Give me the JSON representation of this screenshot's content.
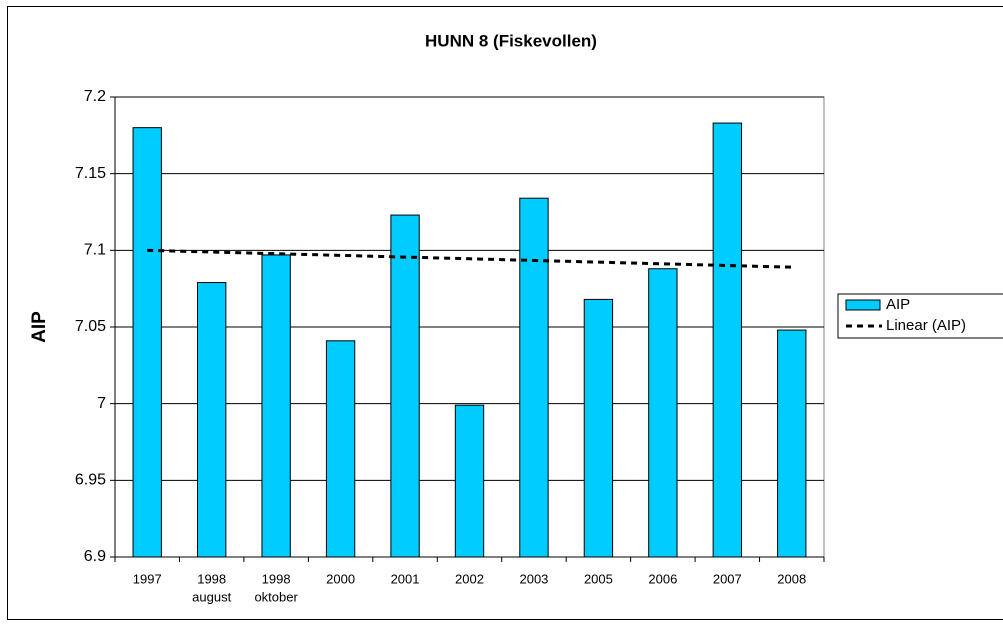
{
  "chart_data": {
    "type": "bar",
    "title": "HUNN 8 (Fiskevollen)",
    "y_label": "AIP",
    "categories": [
      [
        "1997"
      ],
      [
        "1998",
        "august"
      ],
      [
        "1998",
        "oktober"
      ],
      [
        "2000"
      ],
      [
        "2001"
      ],
      [
        "2002"
      ],
      [
        "2003"
      ],
      [
        "2005"
      ],
      [
        "2006"
      ],
      [
        "2007"
      ],
      [
        "2008"
      ]
    ],
    "series": [
      {
        "name": "AIP",
        "color": "#00ccff",
        "values": [
          7.18,
          7.079,
          7.097,
          7.041,
          7.123,
          6.999,
          7.134,
          7.068,
          7.088,
          7.183,
          7.048
        ]
      },
      {
        "name": "Linear (AIP)",
        "color": "#000000",
        "dashed": true,
        "values": [
          7.1,
          7.0989,
          7.0978,
          7.0967,
          7.0956,
          7.0945,
          7.0934,
          7.0923,
          7.0912,
          7.0901,
          7.089
        ]
      }
    ],
    "ylim": [
      6.9,
      7.2
    ],
    "yticks": [
      6.9,
      6.95,
      7,
      7.05,
      7.1,
      7.15,
      7.2
    ],
    "grid": true,
    "legend": "right"
  }
}
